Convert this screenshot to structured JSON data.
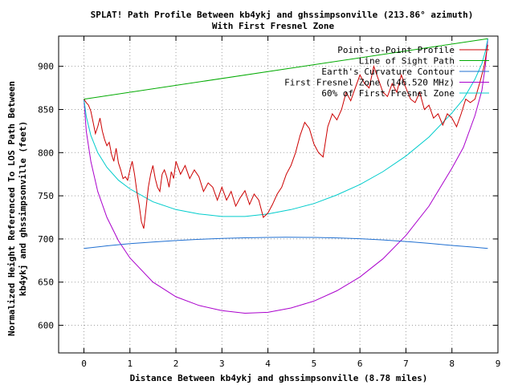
{
  "chart_data": {
    "type": "line",
    "title": "SPLAT! Path Profile Between kb4ykj and ghssimpsonville (213.86° azimuth)",
    "subtitle": "With First Fresnel Zone",
    "xlabel": "Distance Between kb4ykj and ghssimpsonville (8.78 miles)",
    "ylabel_line1": "Normalized Height Referenced To LOS Path Between",
    "ylabel_line2": "kb4ykj and ghssimpsonville (feet)",
    "xlim": [
      -0.55,
      9
    ],
    "ylim": [
      568,
      935
    ],
    "xticks": [
      0,
      1,
      2,
      3,
      4,
      5,
      6,
      7,
      8,
      9
    ],
    "yticks": [
      600,
      650,
      700,
      750,
      800,
      850,
      900
    ],
    "grid": true,
    "legend_position": "top-right",
    "series": [
      {
        "name": "Point-to-Point Profile",
        "color": "#cc0000",
        "x": [
          0,
          0.05,
          0.1,
          0.15,
          0.2,
          0.25,
          0.3,
          0.35,
          0.4,
          0.45,
          0.5,
          0.55,
          0.6,
          0.65,
          0.7,
          0.75,
          0.8,
          0.85,
          0.9,
          0.95,
          1.0,
          1.05,
          1.1,
          1.15,
          1.2,
          1.25,
          1.3,
          1.35,
          1.4,
          1.45,
          1.5,
          1.55,
          1.6,
          1.65,
          1.7,
          1.75,
          1.8,
          1.85,
          1.9,
          1.95,
          2.0,
          2.1,
          2.2,
          2.3,
          2.4,
          2.5,
          2.6,
          2.7,
          2.8,
          2.9,
          3.0,
          3.1,
          3.2,
          3.3,
          3.4,
          3.5,
          3.6,
          3.7,
          3.8,
          3.9,
          4.0,
          4.1,
          4.2,
          4.3,
          4.4,
          4.5,
          4.6,
          4.7,
          4.8,
          4.9,
          5.0,
          5.1,
          5.2,
          5.3,
          5.4,
          5.5,
          5.6,
          5.7,
          5.8,
          5.9,
          6.0,
          6.1,
          6.2,
          6.3,
          6.4,
          6.5,
          6.6,
          6.7,
          6.8,
          6.9,
          7.0,
          7.1,
          7.2,
          7.3,
          7.4,
          7.5,
          7.6,
          7.7,
          7.8,
          7.9,
          8.0,
          8.1,
          8.2,
          8.3,
          8.4,
          8.5,
          8.6,
          8.7,
          8.78
        ],
        "y": [
          862,
          858,
          855,
          848,
          835,
          822,
          830,
          840,
          825,
          815,
          808,
          812,
          798,
          790,
          805,
          788,
          780,
          770,
          772,
          768,
          780,
          790,
          775,
          755,
          740,
          720,
          712,
          735,
          760,
          775,
          785,
          770,
          760,
          755,
          775,
          780,
          772,
          760,
          778,
          770,
          790,
          775,
          785,
          770,
          780,
          772,
          755,
          765,
          760,
          745,
          760,
          745,
          755,
          738,
          748,
          756,
          740,
          752,
          745,
          725,
          730,
          740,
          752,
          760,
          775,
          785,
          800,
          820,
          835,
          828,
          810,
          800,
          795,
          830,
          845,
          838,
          850,
          870,
          860,
          875,
          890,
          880,
          875,
          900,
          885,
          870,
          865,
          880,
          870,
          890,
          875,
          862,
          858,
          870,
          850,
          855,
          840,
          845,
          832,
          845,
          840,
          830,
          845,
          862,
          858,
          862,
          880,
          900,
          925
        ]
      },
      {
        "name": "Line of Sight Path",
        "color": "#00aa00",
        "x": [
          0,
          8.78
        ],
        "y": [
          862,
          932
        ]
      },
      {
        "name": "Earth's Curvature Contour",
        "color": "#1f6fd1",
        "x": [
          0,
          0.5,
          1,
          1.5,
          2,
          2.5,
          3,
          3.5,
          4,
          4.39,
          5,
          5.5,
          6,
          6.5,
          7,
          7.5,
          8,
          8.5,
          8.78
        ],
        "y": [
          689,
          692,
          694.5,
          696.5,
          698.2,
          699.6,
          700.6,
          701.3,
          701.8,
          702,
          701.8,
          701.2,
          700.3,
          698.9,
          697.1,
          694.9,
          692.5,
          690.5,
          689
        ]
      },
      {
        "name": "First Fresnel Zone (146.520 MHz)",
        "color": "#aa00cc",
        "x": [
          0,
          0.05,
          0.15,
          0.3,
          0.5,
          0.75,
          1,
          1.5,
          2,
          2.5,
          3,
          3.5,
          4,
          4.5,
          5,
          5.5,
          6,
          6.5,
          7,
          7.5,
          8,
          8.25,
          8.5,
          8.65,
          8.73,
          8.78
        ],
        "y": [
          862,
          825,
          790,
          755,
          725,
          698,
          678,
          650,
          633,
          623,
          617,
          614,
          615,
          620,
          628,
          640,
          656,
          677,
          704,
          738,
          782,
          806,
          843,
          872,
          902,
          932
        ]
      },
      {
        "name": "60% of First Fresnel Zone",
        "color": "#00cccc",
        "x": [
          0,
          0.05,
          0.15,
          0.3,
          0.5,
          0.75,
          1,
          1.5,
          2,
          2.5,
          3,
          3.5,
          4,
          4.5,
          5,
          5.5,
          6,
          6.5,
          7,
          7.5,
          8,
          8.25,
          8.5,
          8.65,
          8.73,
          8.78
        ],
        "y": [
          862,
          842,
          820,
          800,
          783,
          768,
          758,
          743,
          734,
          729,
          726,
          726,
          729,
          734,
          741,
          751,
          763,
          778,
          796,
          818,
          846,
          862,
          885,
          903,
          918,
          932
        ]
      }
    ]
  }
}
